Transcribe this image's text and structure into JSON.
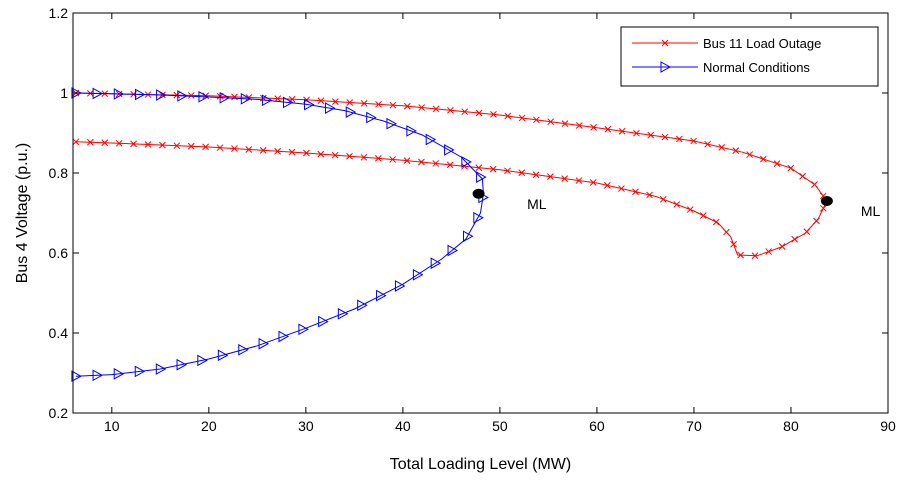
{
  "chart_data": {
    "type": "line",
    "xlabel": "Total Loading Level (MW)",
    "ylabel": "Bus 4 Voltage (p.u.)",
    "xlim": [
      6,
      90
    ],
    "ylim": [
      0.2,
      1.2
    ],
    "xticks": [
      10,
      20,
      30,
      40,
      50,
      60,
      70,
      80,
      90
    ],
    "yticks": [
      0.2,
      0.4,
      0.6,
      0.8,
      1.0,
      1.2
    ],
    "ytick_labels": [
      "0.2",
      "0.4",
      "0.6",
      "0.8",
      "1",
      "1.2"
    ],
    "grid": false,
    "legend_position": "top-right",
    "series": [
      {
        "name": "Bus 11 Load Outage",
        "color": "#ff0000",
        "marker": "x",
        "points": [
          [
            6.3,
            0.878
          ],
          [
            10,
            0.875
          ],
          [
            20,
            0.865
          ],
          [
            30,
            0.85
          ],
          [
            40,
            0.832
          ],
          [
            50,
            0.808
          ],
          [
            60,
            0.775
          ],
          [
            66,
            0.742
          ],
          [
            70,
            0.705
          ],
          [
            72.5,
            0.675
          ],
          [
            73.8,
            0.64
          ],
          [
            74.5,
            0.595
          ],
          [
            76.5,
            0.593
          ],
          [
            79,
            0.615
          ],
          [
            81.5,
            0.65
          ],
          [
            82.8,
            0.685
          ],
          [
            83.7,
            0.73
          ],
          [
            82.5,
            0.77
          ],
          [
            80,
            0.812
          ],
          [
            75,
            0.852
          ],
          [
            70,
            0.88
          ],
          [
            60,
            0.913
          ],
          [
            50,
            0.945
          ],
          [
            40,
            0.968
          ],
          [
            30,
            0.983
          ],
          [
            20,
            0.993
          ],
          [
            10,
            0.998
          ],
          [
            6.3,
            1.0
          ]
        ]
      },
      {
        "name": "Normal Conditions",
        "color": "#0000ff",
        "marker": "triangle-right",
        "points": [
          [
            6.3,
            0.292
          ],
          [
            10,
            0.296
          ],
          [
            15,
            0.31
          ],
          [
            20,
            0.335
          ],
          [
            25,
            0.368
          ],
          [
            30,
            0.412
          ],
          [
            35,
            0.46
          ],
          [
            40,
            0.522
          ],
          [
            44,
            0.585
          ],
          [
            46.5,
            0.635
          ],
          [
            48,
            0.7
          ],
          [
            48.3,
            0.748
          ],
          [
            48.2,
            0.785
          ],
          [
            46,
            0.84
          ],
          [
            42,
            0.895
          ],
          [
            38,
            0.93
          ],
          [
            34,
            0.956
          ],
          [
            30,
            0.972
          ],
          [
            25,
            0.984
          ],
          [
            20,
            0.99
          ],
          [
            15,
            0.995
          ],
          [
            10,
            0.998
          ],
          [
            6.3,
            1.0
          ]
        ]
      }
    ],
    "max_load_points": [
      {
        "x": 47.8,
        "y": 0.748,
        "label": "ML",
        "label_dx": 5.0
      },
      {
        "x": 83.7,
        "y": 0.73,
        "label": "ML",
        "label_dx": 3.5
      }
    ]
  }
}
